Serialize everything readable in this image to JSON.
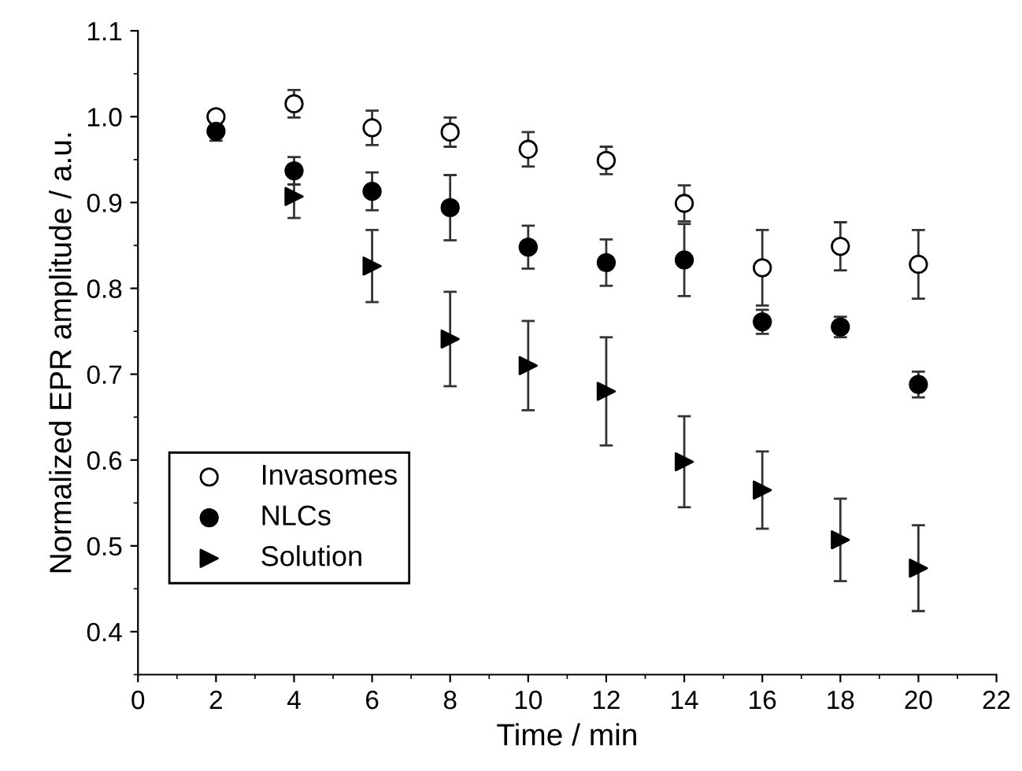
{
  "chart_data": {
    "type": "scatter",
    "xlabel": "Time / min",
    "ylabel": "Normalized EPR amplitude / a.u.",
    "x": [
      2,
      4,
      6,
      8,
      10,
      12,
      14,
      16,
      18,
      20
    ],
    "series": [
      {
        "name": "Invasomes",
        "color": "#ffffff",
        "marker": "circle",
        "values": [
          1.0,
          1.015,
          0.987,
          0.982,
          0.962,
          0.949,
          0.899,
          0.824,
          0.849,
          0.828
        ],
        "errors": [
          0.005,
          0.016,
          0.02,
          0.017,
          0.02,
          0.016,
          0.021,
          0.044,
          0.028,
          0.04
        ]
      },
      {
        "name": "NLCs",
        "color": "#000000",
        "marker": "circle",
        "values": [
          0.983,
          0.937,
          0.913,
          0.894,
          0.848,
          0.83,
          0.833,
          0.761,
          0.755,
          0.688
        ],
        "errors": [
          0.011,
          0.016,
          0.022,
          0.038,
          0.025,
          0.027,
          0.042,
          0.014,
          0.012,
          0.015
        ]
      },
      {
        "name": "Solution",
        "color": "#000000",
        "marker": "triangle",
        "values": [
          null,
          0.907,
          0.826,
          0.741,
          0.71,
          0.68,
          0.598,
          0.565,
          0.507,
          0.474
        ],
        "errors": [
          null,
          0.025,
          0.042,
          0.055,
          0.052,
          0.063,
          0.053,
          0.045,
          0.048,
          0.05
        ]
      }
    ],
    "xlim": [
      0,
      22
    ],
    "xticks": [
      0,
      2,
      4,
      6,
      8,
      10,
      12,
      14,
      16,
      18,
      20,
      22
    ],
    "ylim": [
      0.35,
      1.1
    ],
    "yticks": [
      0.4,
      0.5,
      0.6,
      0.7,
      0.8,
      0.9,
      {
        "value": 1.0,
        "label": "1.0"
      },
      1.1
    ],
    "grid": false,
    "legend": "lower left"
  }
}
